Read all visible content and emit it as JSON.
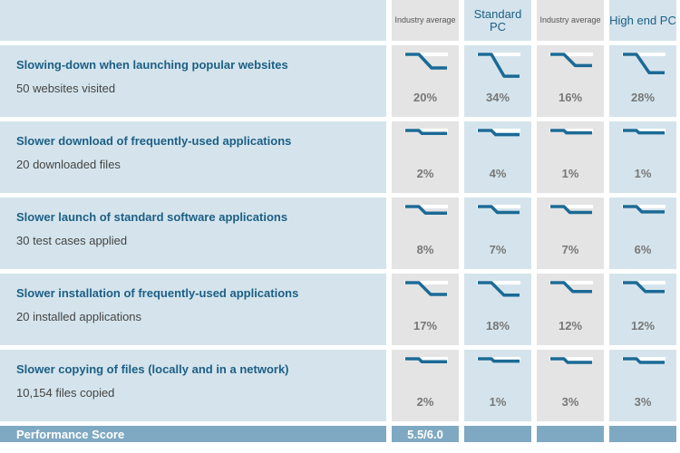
{
  "columns": [
    {
      "label": "Industry average",
      "style": "small",
      "bg": "gray"
    },
    {
      "label": "Standard PC",
      "style": "big",
      "bg": "blue"
    },
    {
      "label": "Industry average",
      "style": "small",
      "bg": "gray"
    },
    {
      "label": "High end PC",
      "style": "big",
      "bg": "blue"
    }
  ],
  "rows": [
    {
      "title": "Slowing-down when launching popular websites",
      "subtitle": "50 websites visited",
      "values": [
        {
          "pct": "20%",
          "drop": 0.2
        },
        {
          "pct": "34%",
          "drop": 0.34
        },
        {
          "pct": "16%",
          "drop": 0.16
        },
        {
          "pct": "28%",
          "drop": 0.28
        }
      ]
    },
    {
      "title": "Slower download of frequently-used applications",
      "subtitle": "20 downloaded files",
      "values": [
        {
          "pct": "2%",
          "drop": 0.02
        },
        {
          "pct": "4%",
          "drop": 0.04
        },
        {
          "pct": "1%",
          "drop": 0.01
        },
        {
          "pct": "1%",
          "drop": 0.01
        }
      ]
    },
    {
      "title": "Slower launch of standard software applications",
      "subtitle": "30 test cases applied",
      "values": [
        {
          "pct": "8%",
          "drop": 0.08
        },
        {
          "pct": "7%",
          "drop": 0.07
        },
        {
          "pct": "7%",
          "drop": 0.07
        },
        {
          "pct": "6%",
          "drop": 0.06
        }
      ]
    },
    {
      "title": "Slower installation of frequently-used applications",
      "subtitle": "20 installed applications",
      "values": [
        {
          "pct": "17%",
          "drop": 0.17
        },
        {
          "pct": "18%",
          "drop": 0.18
        },
        {
          "pct": "12%",
          "drop": 0.12
        },
        {
          "pct": "12%",
          "drop": 0.12
        }
      ]
    },
    {
      "title": "Slower copying of files (locally and in a network)",
      "subtitle": "10,154 files copied",
      "values": [
        {
          "pct": "2%",
          "drop": 0.02
        },
        {
          "pct": "1%",
          "drop": 0.01
        },
        {
          "pct": "3%",
          "drop": 0.03
        },
        {
          "pct": "3%",
          "drop": 0.03
        }
      ]
    }
  ],
  "footer": {
    "label": "Performance Score",
    "score": "5.5/6.0"
  },
  "colors": {
    "line": "#1b6a96",
    "title": "#1b5f86",
    "gray_bg": "#e4e4e4",
    "blue_bg": "#d5e4ec",
    "footer_bg": "#7fa9c2"
  }
}
